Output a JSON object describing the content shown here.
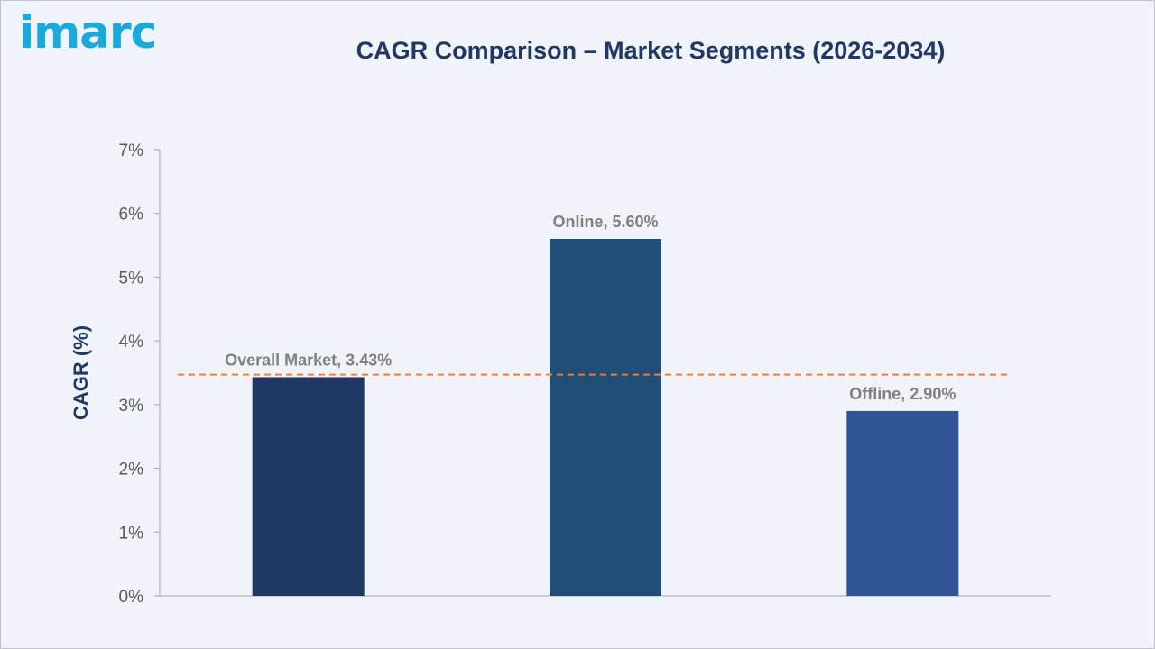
{
  "brand": {
    "logo_text": "imarc"
  },
  "chart_data": {
    "type": "bar",
    "title": "CAGR Comparison – Market Segments (2026-2034)",
    "ylabel": "CAGR (%)",
    "xlabel": "",
    "ylim": [
      0,
      7
    ],
    "yticks": [
      0,
      1,
      2,
      3,
      4,
      5,
      6,
      7
    ],
    "ytick_suffix": "%",
    "categories": [
      "Overall Market",
      "Online",
      "Offline"
    ],
    "values": [
      3.43,
      5.6,
      2.9
    ],
    "data_labels": [
      "Overall Market, 3.43%",
      "Online, 5.60%",
      "Offline, 2.90%"
    ],
    "bar_colors": [
      "#203864",
      "#1f4e79",
      "#2f5597"
    ],
    "reference_line": {
      "value": 3.47,
      "color": "#ed7d31",
      "style": "dashed"
    },
    "grid": false,
    "legend": "none"
  }
}
